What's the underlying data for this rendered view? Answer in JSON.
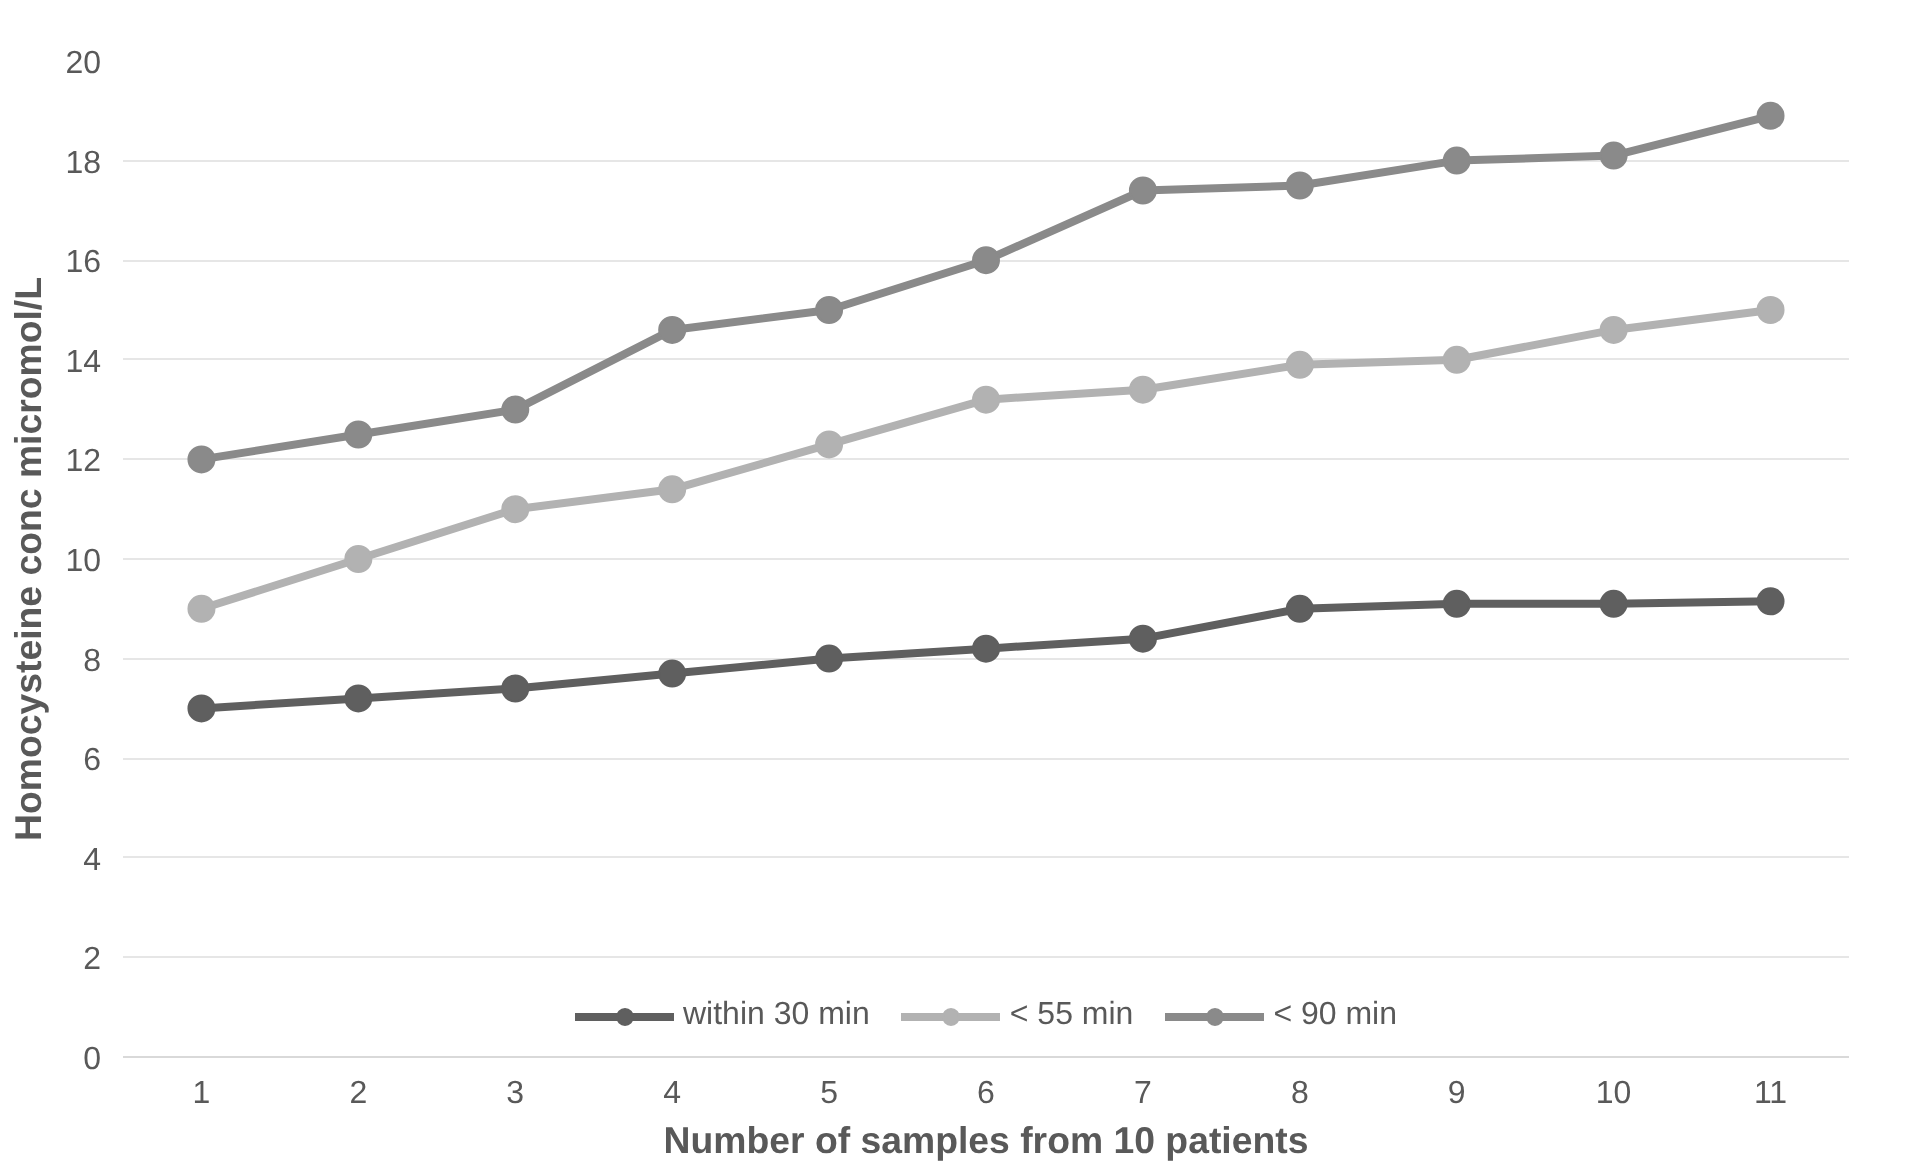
{
  "chart_data": {
    "type": "line",
    "xlabel": "Number of samples from 10 patients",
    "ylabel": "Homocysteine conc micromol/L",
    "categories": [
      "1",
      "2",
      "3",
      "4",
      "5",
      "6",
      "7",
      "8",
      "9",
      "10",
      "11"
    ],
    "series": [
      {
        "name": "within 30 min",
        "color": "#5f5f5f",
        "values": [
          7.0,
          7.2,
          7.4,
          7.7,
          8.0,
          8.2,
          8.4,
          9.0,
          9.1,
          9.1,
          9.15
        ]
      },
      {
        "name": "< 55 min",
        "color": "#b2b2b2",
        "values": [
          9.0,
          10.0,
          11.0,
          11.4,
          12.3,
          13.2,
          13.4,
          13.9,
          14.0,
          14.6,
          15.0
        ]
      },
      {
        "name": "< 90 min",
        "color": "#8a8a8a",
        "values": [
          12.0,
          12.5,
          13.0,
          14.6,
          15.0,
          16.0,
          17.4,
          17.5,
          18.0,
          18.1,
          18.9
        ]
      }
    ],
    "ylim": [
      0,
      20
    ],
    "yticks": [
      0,
      2,
      4,
      6,
      8,
      10,
      12,
      14,
      16,
      18,
      20
    ],
    "grid": "y",
    "legend": "bottom",
    "marker": "circle",
    "line_style": "solid"
  }
}
